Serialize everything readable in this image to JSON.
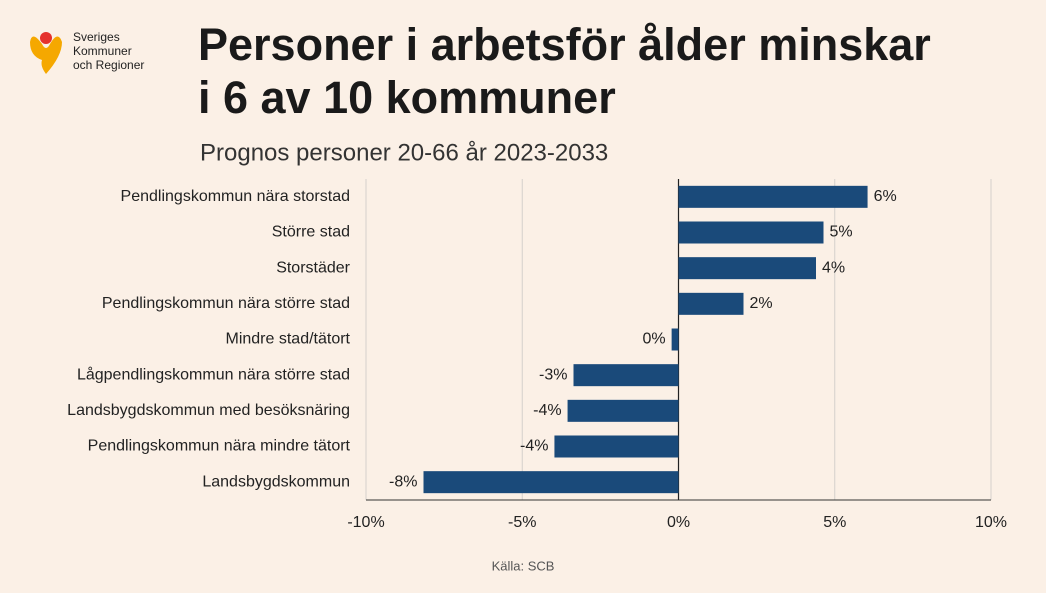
{
  "chart_data": {
    "type": "bar",
    "orientation": "horizontal",
    "logo": [
      "Sveriges",
      "Kommuner",
      "och Regioner"
    ],
    "title": [
      "Personer i arbetsför ålder minskar",
      "i 6 av 10 kommuner"
    ],
    "subtitle": "Prognos personer 20-66 år 2023-2033",
    "categories": [
      "Pendlingskommun nära storstad",
      "Större stad",
      "Storstäder",
      "Pendlingskommun nära större stad",
      "Mindre stad/tätort",
      "Lågpendlingskommun nära större stad",
      "Landsbygdskommun med besöksnäring",
      "Pendlingskommun nära mindre tätort",
      "Landsbygdskommun"
    ],
    "values": [
      6.05,
      4.64,
      4.4,
      2.08,
      -0.22,
      -3.36,
      -3.55,
      -3.97,
      -8.16
    ],
    "value_labels": [
      "6%",
      "5%",
      "4%",
      "2%",
      "0%",
      "-3%",
      "-4%",
      "-4%",
      "-8%"
    ],
    "color": "#1a4a7a",
    "xlim": [
      -10,
      10
    ],
    "xticks": [
      {
        "value": -10,
        "label": "-10%"
      },
      {
        "value": -5,
        "label": "-5%"
      },
      {
        "value": 0,
        "label": "0%"
      },
      {
        "value": 5,
        "label": "5%"
      },
      {
        "value": 10,
        "label": "10%"
      }
    ],
    "grid": true,
    "source": "Källa: SCB"
  }
}
